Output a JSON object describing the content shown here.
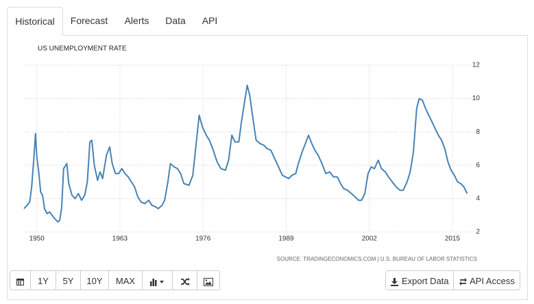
{
  "tabs": [
    "Historical",
    "Forecast",
    "Alerts",
    "Data",
    "API"
  ],
  "chart_data": {
    "type": "line",
    "title": "US UNEMPLOYMENT RATE",
    "source": "SOURCE: TRADINGECONOMICS.COM | U.S. BUREAU OF LABOR STATISTICS",
    "x": [
      1948.0,
      1948.5,
      1948.9,
      1949.2,
      1949.5,
      1949.8,
      1950.0,
      1950.3,
      1950.6,
      1950.9,
      1951.2,
      1951.6,
      1952.0,
      1952.4,
      1952.8,
      1953.3,
      1953.6,
      1953.9,
      1954.2,
      1954.7,
      1955.0,
      1955.5,
      1956.0,
      1956.5,
      1957.0,
      1957.5,
      1957.9,
      1958.3,
      1958.6,
      1959.0,
      1959.5,
      1959.9,
      1960.3,
      1960.9,
      1961.4,
      1961.8,
      1962.3,
      1962.8,
      1963.3,
      1963.8,
      1964.3,
      1964.8,
      1965.3,
      1965.8,
      1966.3,
      1966.9,
      1967.5,
      1968.0,
      1968.6,
      1969.0,
      1969.6,
      1970.0,
      1970.5,
      1970.9,
      1971.5,
      1972.0,
      1972.5,
      1973.0,
      1973.8,
      1974.4,
      1974.9,
      1975.4,
      1975.9,
      1976.5,
      1977.0,
      1977.6,
      1978.2,
      1978.8,
      1979.5,
      1980.0,
      1980.5,
      1981.0,
      1981.6,
      1982.0,
      1982.5,
      1982.9,
      1983.3,
      1983.8,
      1984.3,
      1984.9,
      1985.5,
      1986.0,
      1986.6,
      1987.2,
      1987.8,
      1988.4,
      1988.9,
      1989.4,
      1989.9,
      1990.5,
      1990.9,
      1991.5,
      1992.0,
      1992.5,
      1993.0,
      1993.5,
      1994.0,
      1994.6,
      1995.2,
      1995.8,
      1996.4,
      1997.0,
      1997.5,
      1998.0,
      1998.6,
      1999.2,
      1999.8,
      2000.3,
      2000.8,
      2001.3,
      2001.8,
      2002.3,
      2002.8,
      2003.4,
      2003.9,
      2004.5,
      2005.0,
      2005.6,
      2006.2,
      2006.8,
      2007.3,
      2007.9,
      2008.4,
      2008.9,
      2009.4,
      2009.8,
      2010.3,
      2010.8,
      2011.3,
      2011.8,
      2012.3,
      2012.8,
      2013.3,
      2013.8,
      2014.3,
      2014.8,
      2015.3,
      2015.8,
      2016.3,
      2016.8,
      2017.3
    ],
    "values": [
      3.4,
      3.6,
      3.8,
      4.7,
      6.2,
      7.9,
      6.5,
      5.6,
      4.4,
      4.2,
      3.4,
      3.1,
      3.2,
      3.0,
      2.8,
      2.6,
      2.7,
      3.5,
      5.8,
      6.1,
      4.9,
      4.2,
      4.0,
      4.3,
      3.9,
      4.2,
      5.0,
      7.4,
      7.5,
      6.0,
      5.1,
      5.6,
      5.2,
      6.6,
      7.1,
      6.1,
      5.5,
      5.5,
      5.8,
      5.5,
      5.3,
      5.0,
      4.7,
      4.1,
      3.8,
      3.7,
      3.9,
      3.6,
      3.5,
      3.4,
      3.6,
      3.9,
      5.0,
      6.1,
      5.9,
      5.8,
      5.5,
      4.9,
      4.8,
      5.4,
      7.2,
      9.0,
      8.3,
      7.8,
      7.5,
      6.9,
      6.2,
      5.8,
      5.7,
      6.3,
      7.8,
      7.4,
      7.4,
      8.6,
      9.8,
      10.8,
      10.2,
      8.8,
      7.5,
      7.3,
      7.2,
      7.0,
      6.9,
      6.4,
      5.9,
      5.4,
      5.3,
      5.2,
      5.4,
      5.5,
      6.1,
      6.8,
      7.3,
      7.8,
      7.3,
      6.9,
      6.6,
      6.1,
      5.5,
      5.6,
      5.3,
      5.3,
      4.9,
      4.6,
      4.5,
      4.3,
      4.1,
      3.9,
      3.9,
      4.3,
      5.5,
      5.9,
      5.8,
      6.3,
      5.8,
      5.6,
      5.3,
      5.0,
      4.7,
      4.5,
      4.5,
      5.0,
      5.6,
      6.8,
      9.4,
      10.0,
      9.9,
      9.4,
      9.0,
      8.6,
      8.2,
      7.8,
      7.5,
      7.0,
      6.2,
      5.7,
      5.4,
      5.0,
      4.9,
      4.7,
      4.3
    ],
    "color": "#4682b4",
    "xlim": [
      1948,
      2018
    ],
    "xticks": [
      1950,
      1963,
      1976,
      1989,
      2002,
      2015
    ],
    "ylim": [
      2,
      12
    ],
    "yticks": [
      2,
      4,
      6,
      8,
      10,
      12
    ],
    "grid": true
  },
  "buttons": [
    "1Y",
    "5Y",
    "10Y",
    "MAX"
  ],
  "actions": [
    "Export Data",
    "API Access"
  ]
}
